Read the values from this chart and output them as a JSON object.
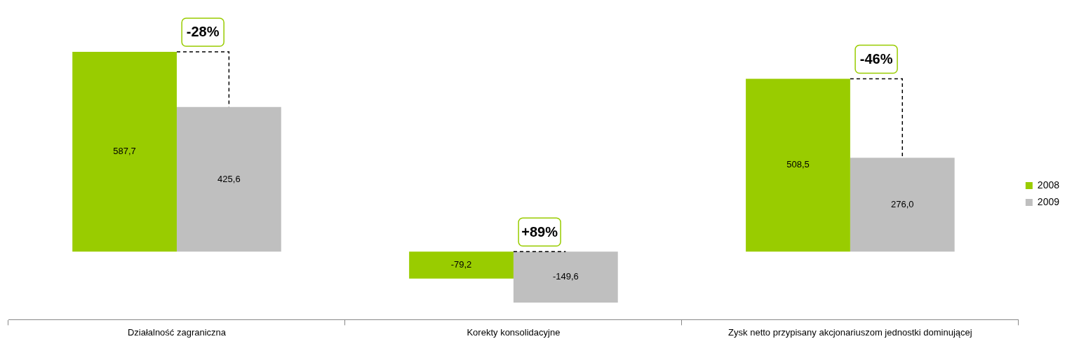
{
  "chart_data": {
    "type": "bar",
    "categories": [
      "Działalność zagraniczna",
      "Korekty konsolidacyjne",
      "Zysk netto przypisany akcjonariuszom jednostki dominującej"
    ],
    "series": [
      {
        "name": "2008",
        "color": "#99cc00",
        "values": [
          587.7,
          -79.2,
          508.5
        ],
        "value_labels": [
          "587,7",
          "-79,2",
          "508,5"
        ]
      },
      {
        "name": "2009",
        "color": "#bfbfbf",
        "values": [
          425.6,
          -149.6,
          276.0
        ],
        "value_labels": [
          "425,6",
          "-149,6",
          "276,0"
        ]
      }
    ],
    "annotations": [
      {
        "text": "-28%",
        "x": "Działalność zagraniczna",
        "y": 587.7
      },
      {
        "text": "+89%",
        "x": "Korekty konsolidacyjne",
        "y": 0
      },
      {
        "text": "-46%",
        "x": "Zysk netto przypisany akcjonariuszom jednostki dominującej",
        "y": 508.5
      }
    ],
    "legend": "right",
    "grid": false
  }
}
